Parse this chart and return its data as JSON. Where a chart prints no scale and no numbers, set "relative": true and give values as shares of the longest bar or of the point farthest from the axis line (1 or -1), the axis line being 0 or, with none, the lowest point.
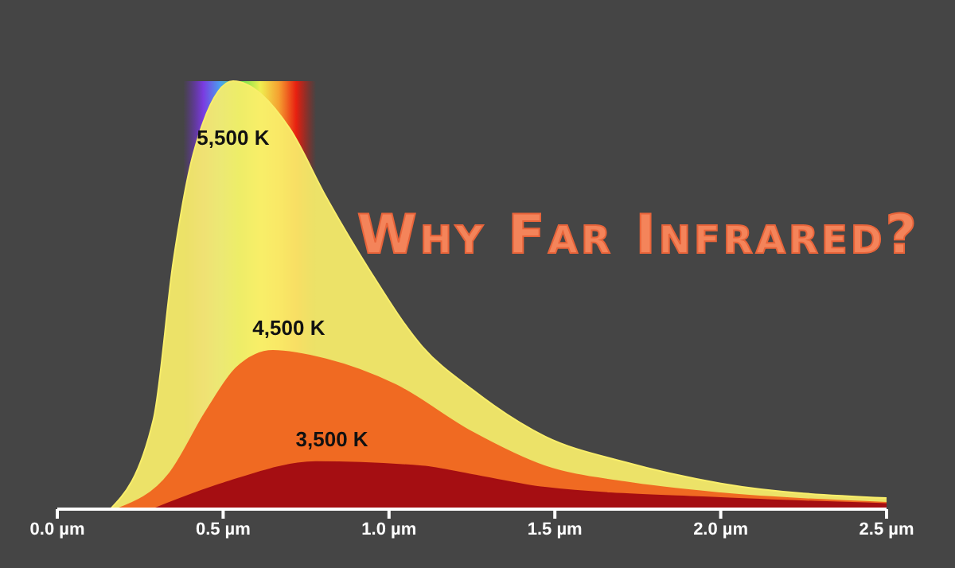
{
  "chart_data": {
    "type": "area",
    "title": "Why Far Infrared?",
    "relative": true,
    "xlim": [
      0,
      2.5
    ],
    "bands": [
      {
        "axis": "x",
        "from": 0.38,
        "to": 0.78
      }
    ],
    "xticks": [
      {
        "value": 0,
        "label": "0.0 µm"
      },
      {
        "value": 0.5,
        "label": "0.5 µm"
      },
      {
        "value": 1,
        "label": "1.0 µm"
      },
      {
        "value": 1.5,
        "label": "1.5 µm"
      },
      {
        "value": 2,
        "label": "2.0 µm"
      },
      {
        "value": 2.5,
        "label": "2.5 µm"
      }
    ],
    "series": [
      {
        "name": "5,500 K",
        "color": "#f9ee6a",
        "x": [
          0.16,
          0.29,
          0.35,
          0.41,
          0.53,
          0.7,
          0.81,
          0.94,
          1.1,
          1.25,
          1.47,
          1.71,
          2.0,
          2.5
        ],
        "values": [
          0,
          0.21,
          0.58,
          0.83,
          1,
          0.89,
          0.73,
          0.56,
          0.38,
          0.28,
          0.17,
          0.11,
          0.06,
          0.026
        ]
      },
      {
        "name": "4,500 K",
        "color": "#f06a22",
        "x": [
          0.18,
          0.34,
          0.45,
          0.54,
          0.65,
          0.81,
          1.02,
          1.25,
          1.47,
          1.71,
          2.0,
          2.5
        ],
        "values": [
          0,
          0.085,
          0.23,
          0.33,
          0.37,
          0.35,
          0.29,
          0.18,
          0.1,
          0.063,
          0.037,
          0.015
        ]
      },
      {
        "name": "3,500 K",
        "color": "#a50e12",
        "x": [
          0.29,
          0.5,
          0.78,
          1.1,
          1.25,
          1.47,
          2.0,
          2.5
        ],
        "values": [
          0,
          0.06,
          0.11,
          0.1,
          0.08,
          0.05,
          0.026,
          0.012
        ]
      }
    ]
  }
}
